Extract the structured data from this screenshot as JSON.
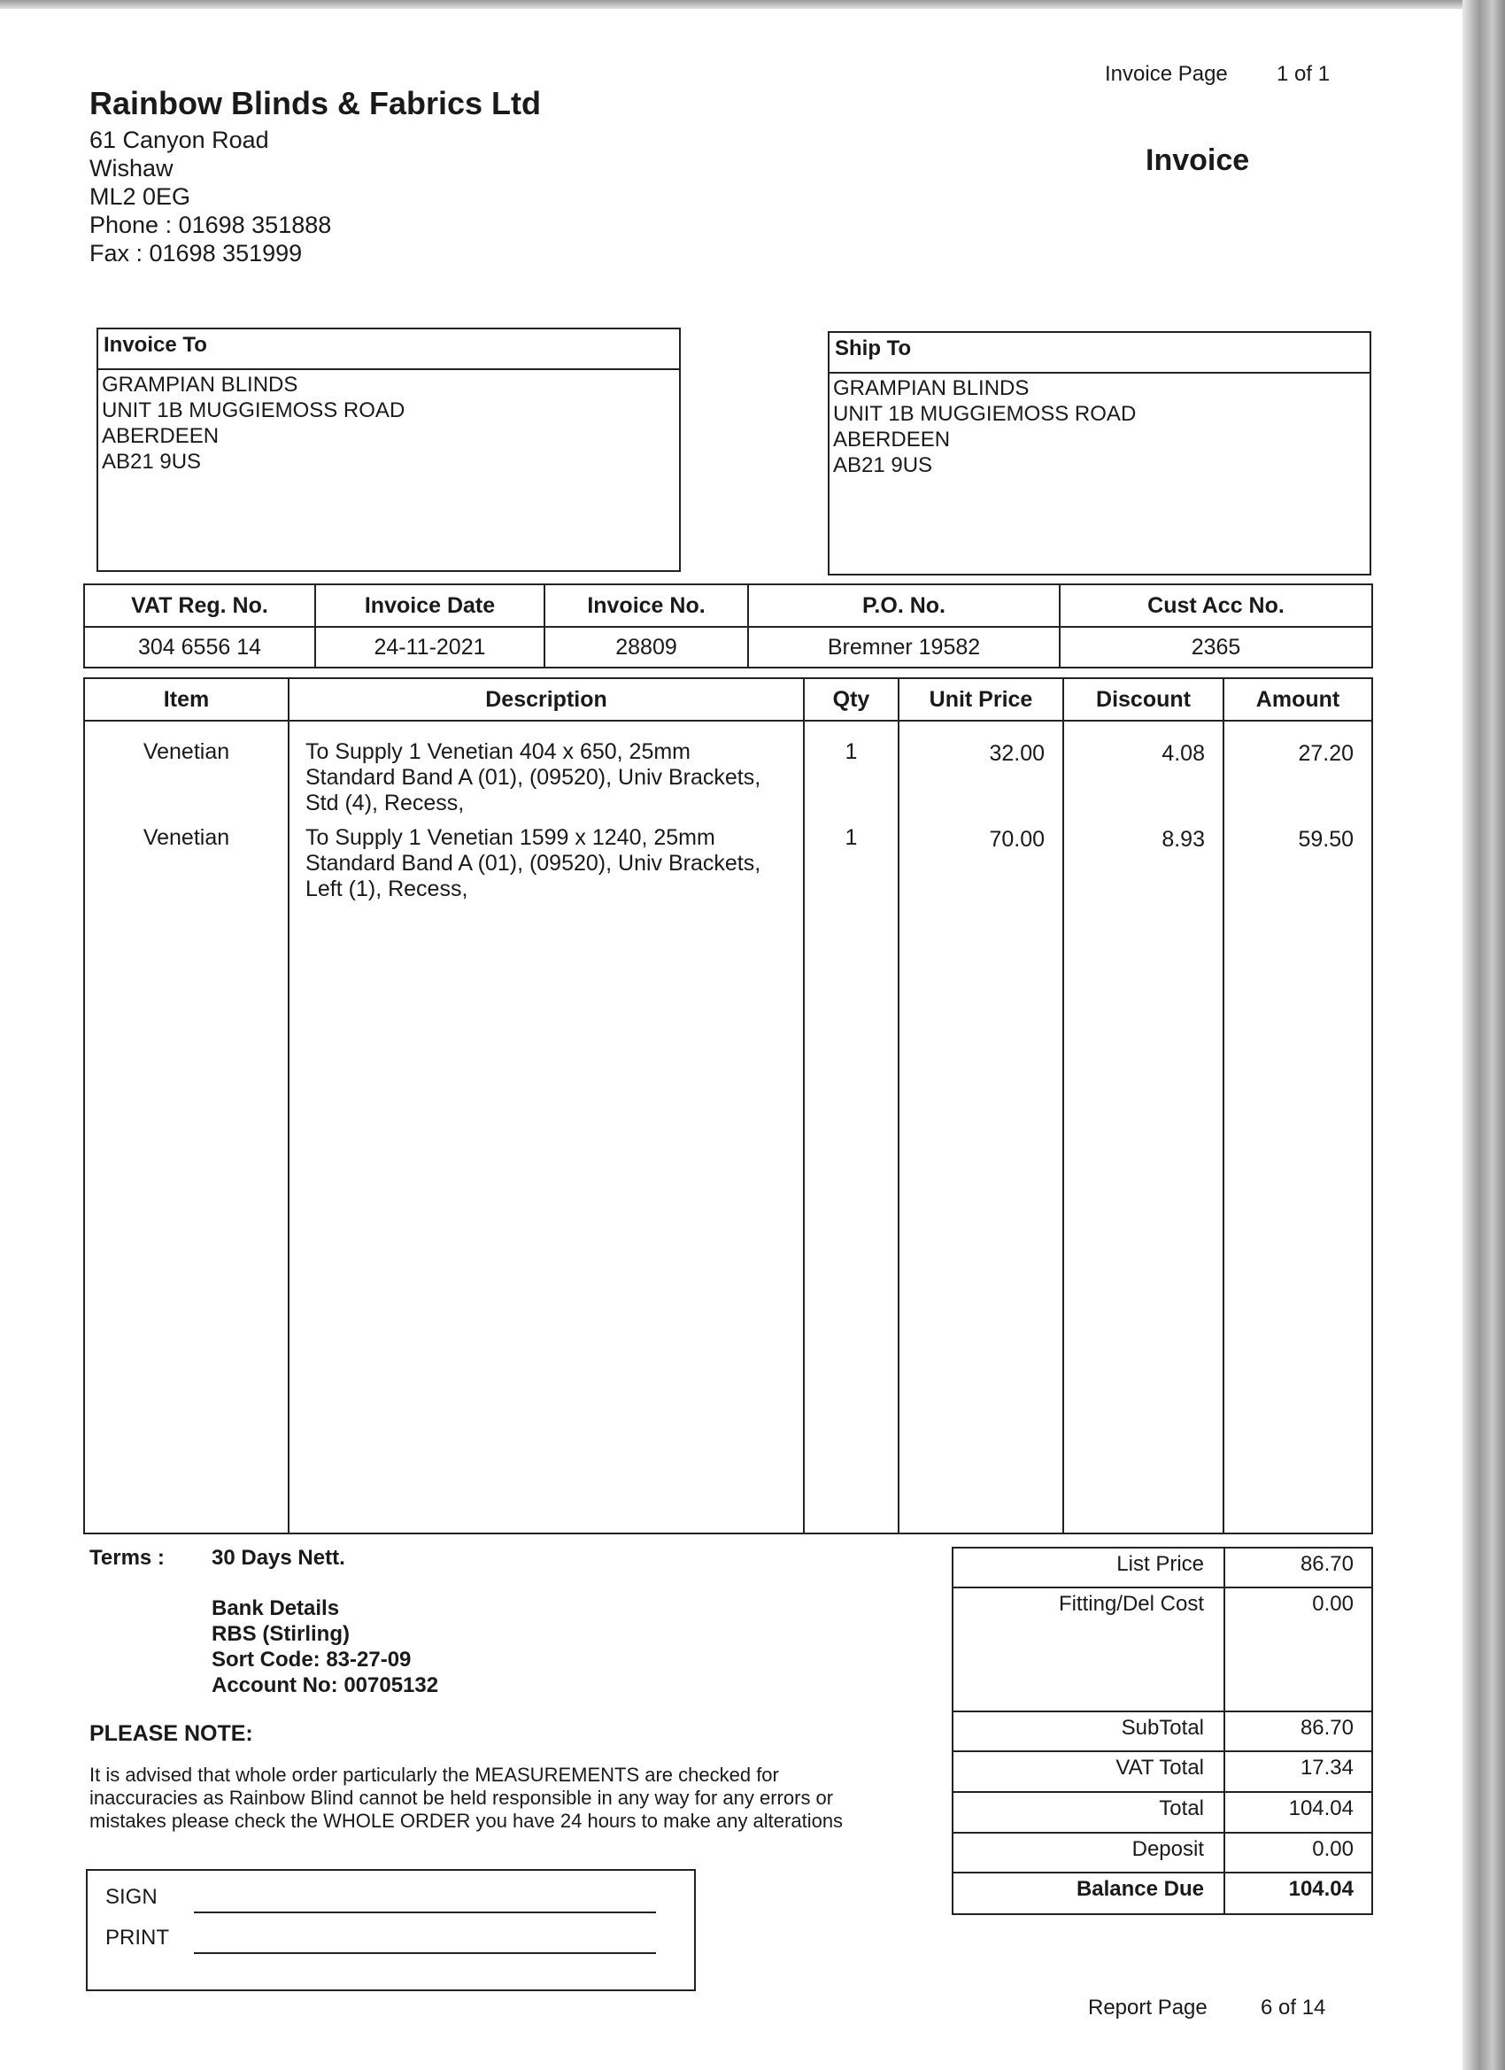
{
  "header": {
    "page_label": "Invoice  Page",
    "page_value": "1 of 1",
    "company_name": "Rainbow Blinds & Fabrics Ltd",
    "address": [
      "61 Canyon Road",
      "Wishaw",
      "ML2 0EG",
      "Phone : 01698 351888",
      "Fax : 01698 351999"
    ],
    "doc_title": "Invoice"
  },
  "invoice_to": {
    "label": "Invoice To",
    "lines": [
      "GRAMPIAN BLINDS",
      "UNIT 1B MUGGIEMOSS ROAD",
      "ABERDEEN",
      "AB21 9US"
    ]
  },
  "ship_to": {
    "label": "Ship To",
    "lines": [
      "GRAMPIAN BLINDS",
      "UNIT 1B MUGGIEMOSS ROAD",
      "ABERDEEN",
      "AB21 9US"
    ]
  },
  "info": {
    "headers": [
      "VAT Reg. No.",
      "Invoice Date",
      "Invoice No.",
      "P.O. No.",
      "Cust Acc No."
    ],
    "values": [
      "304 6556 14",
      "24-11-2021",
      "28809",
      "Bremner 19582",
      "2365"
    ]
  },
  "items": {
    "headers": [
      "Item",
      "Description",
      "Qty",
      "Unit Price",
      "Discount",
      "Amount"
    ],
    "rows": [
      {
        "item": "Venetian",
        "desc": [
          "To Supply 1 Venetian  404 x 650, 25mm",
          "Standard Band A (01), (09520), Univ Brackets,",
          "Std (4), Recess,"
        ],
        "qty": "1",
        "unit_price": "32.00",
        "discount": "4.08",
        "amount": "27.20"
      },
      {
        "item": "Venetian",
        "desc": [
          "To Supply 1 Venetian  1599 x 1240, 25mm",
          "Standard Band A (01), (09520), Univ Brackets,",
          "Left (1), Recess,"
        ],
        "qty": "1",
        "unit_price": "70.00",
        "discount": "8.93",
        "amount": "59.50"
      }
    ]
  },
  "terms": {
    "label": "Terms :",
    "value": "30 Days Nett.",
    "bank": [
      "Bank Details",
      "RBS (Stirling)",
      "Sort Code: 83-27-09",
      "Account No: 00705132"
    ]
  },
  "note": {
    "title": "PLEASE NOTE:",
    "lines": [
      "It is advised that whole order particularly the MEASUREMENTS are checked for",
      "inaccuracies as Rainbow Blind cannot be held responsible in any way for any errors or",
      "mistakes please check the WHOLE ORDER you have 24 hours to make any alterations"
    ]
  },
  "sign": {
    "sign_label": "SIGN",
    "print_label": "PRINT"
  },
  "totals": [
    {
      "label": "List Price",
      "value": "86.70"
    },
    {
      "label": "Fitting/Del Cost",
      "value": "0.00"
    },
    {
      "label": "SubTotal",
      "value": "86.70"
    },
    {
      "label": "VAT Total",
      "value": "17.34"
    },
    {
      "label": "Total",
      "value": "104.04"
    },
    {
      "label": "Deposit",
      "value": "0.00"
    },
    {
      "label": "Balance Due",
      "value": "104.04"
    }
  ],
  "footer": {
    "label": "Report Page",
    "value": "6 of 14"
  }
}
